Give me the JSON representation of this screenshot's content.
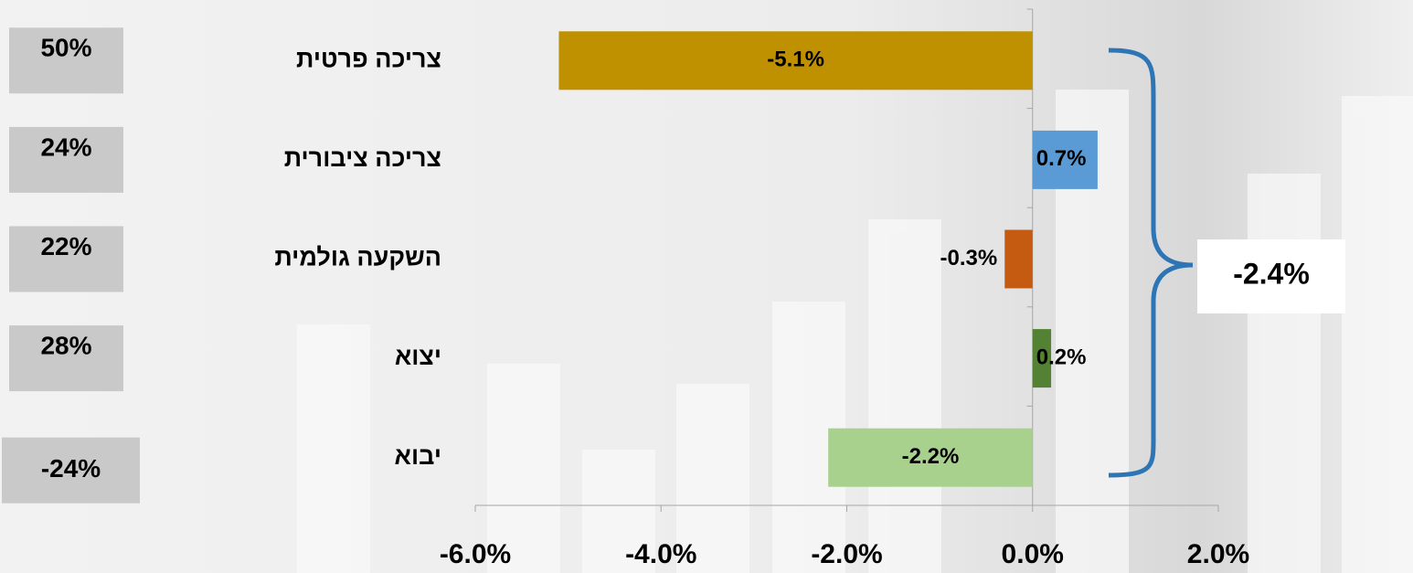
{
  "chart_data": {
    "type": "bar",
    "orientation": "horizontal",
    "categories": [
      "צריכה פרטית",
      "צריכה ציבורית",
      "השקעה גולמית",
      "יצוא",
      "יבוא"
    ],
    "values": [
      -5.1,
      0.7,
      -0.3,
      0.2,
      -2.2
    ],
    "value_labels": [
      "-5.1%",
      "0.7%",
      "-0.3%",
      "0.2%",
      "-2.2%"
    ],
    "colors": [
      "#bf9000",
      "#5b9bd5",
      "#c55a11",
      "#548235",
      "#a9d18e"
    ],
    "xlim": [
      -6,
      2
    ],
    "xticks": [
      {
        "value": -6,
        "label": "-6.0%"
      },
      {
        "value": -4,
        "label": "-4.0%"
      },
      {
        "value": -2,
        "label": "-2.0%"
      },
      {
        "value": 0,
        "label": "0.0%"
      },
      {
        "value": 2,
        "label": "2.0%"
      }
    ],
    "shares": {
      "values": [
        50,
        24,
        22,
        28,
        -24
      ],
      "value_labels": [
        "50%",
        "24%",
        "22%",
        "28%",
        "-24%"
      ]
    },
    "total": {
      "value": -2.4,
      "label": "-2.4%"
    }
  }
}
